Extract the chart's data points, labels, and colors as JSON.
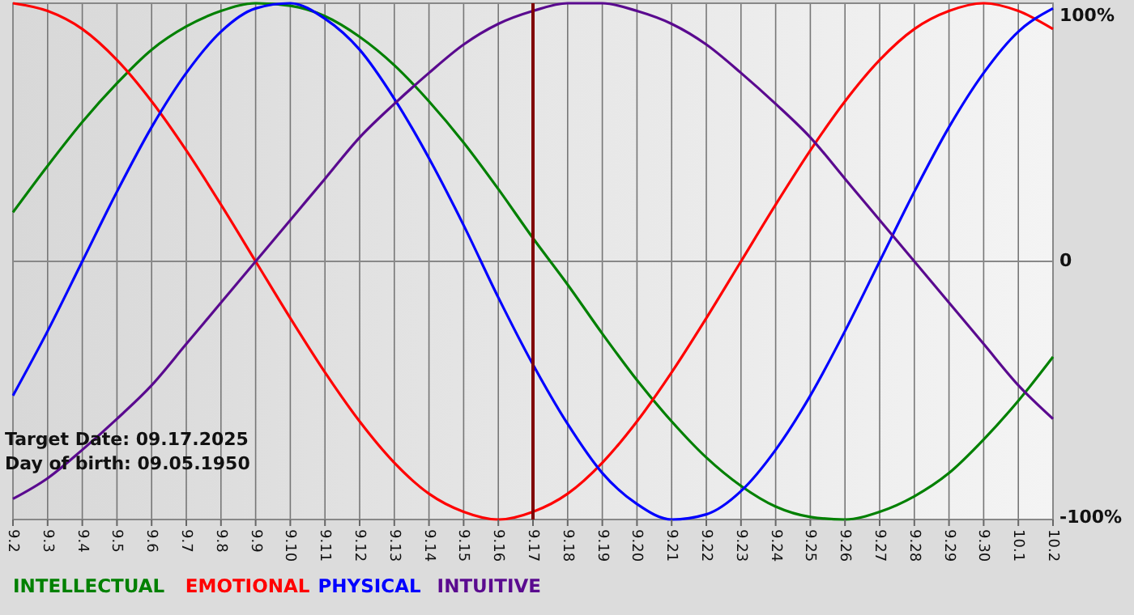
{
  "chart_data": {
    "type": "line",
    "categories": [
      "9.2",
      "9.3",
      "9.4",
      "9.5",
      "9.6",
      "9.7",
      "9.8",
      "9.9",
      "9.10",
      "9.11",
      "9.12",
      "9.13",
      "9.14",
      "9.15",
      "9.16",
      "9.17",
      "9.18",
      "9.19",
      "9.20",
      "9.21",
      "9.22",
      "9.23",
      "9.24",
      "9.25",
      "9.26",
      "9.27",
      "9.28",
      "9.29",
      "9.30",
      "10.1",
      "10.2"
    ],
    "series": [
      {
        "name": "INTELLECTUAL",
        "color": "#008000",
        "values": [
          19,
          37,
          54,
          69,
          82,
          91,
          97,
          100,
          99,
          95,
          87,
          76,
          62,
          46,
          28,
          9,
          -9,
          -28,
          -46,
          -62,
          -76,
          -87,
          -95,
          -99,
          -100,
          -97,
          -91,
          -82,
          -69,
          -54,
          -37
        ]
      },
      {
        "name": "EMOTIONAL",
        "color": "#ff0000",
        "values": [
          100,
          97,
          90,
          78,
          62,
          43,
          22,
          0,
          -22,
          -43,
          -62,
          -78,
          -90,
          -97,
          -100,
          -97,
          -90,
          -78,
          -62,
          -43,
          -22,
          0,
          22,
          43,
          62,
          78,
          90,
          97,
          100,
          97,
          90
        ]
      },
      {
        "name": "PHYSICAL",
        "color": "#0000ff",
        "values": [
          -52,
          -27,
          0,
          27,
          52,
          73,
          89,
          98,
          100,
          94,
          82,
          63,
          40,
          14,
          -14,
          -40,
          -63,
          -82,
          -94,
          -100,
          -98,
          -89,
          -73,
          -52,
          -27,
          0,
          27,
          52,
          73,
          89,
          98
        ]
      },
      {
        "name": "INTUITIVE",
        "color": "#5a0a8f",
        "values": [
          -92,
          -84,
          -73,
          -61,
          -48,
          -32,
          -16,
          0,
          16,
          32,
          48,
          61,
          73,
          84,
          92,
          97,
          100,
          100,
          97,
          92,
          84,
          73,
          61,
          48,
          32,
          16,
          0,
          -16,
          -32,
          -48,
          -61
        ]
      }
    ],
    "ylim": [
      -100,
      100
    ],
    "yticks": [
      {
        "value": 100,
        "label": "100%"
      },
      0,
      {
        "value": -100,
        "label": "-100%"
      }
    ],
    "grid": true,
    "legend": "bottom",
    "marker": "none",
    "line_style": "solid",
    "ref_lines": [
      {
        "axis": "x",
        "value": "9.17",
        "color": "#800000"
      }
    ],
    "annotations": [
      "Target Date: 09.17.2025",
      "Day of birth: 09.05.1950"
    ]
  }
}
